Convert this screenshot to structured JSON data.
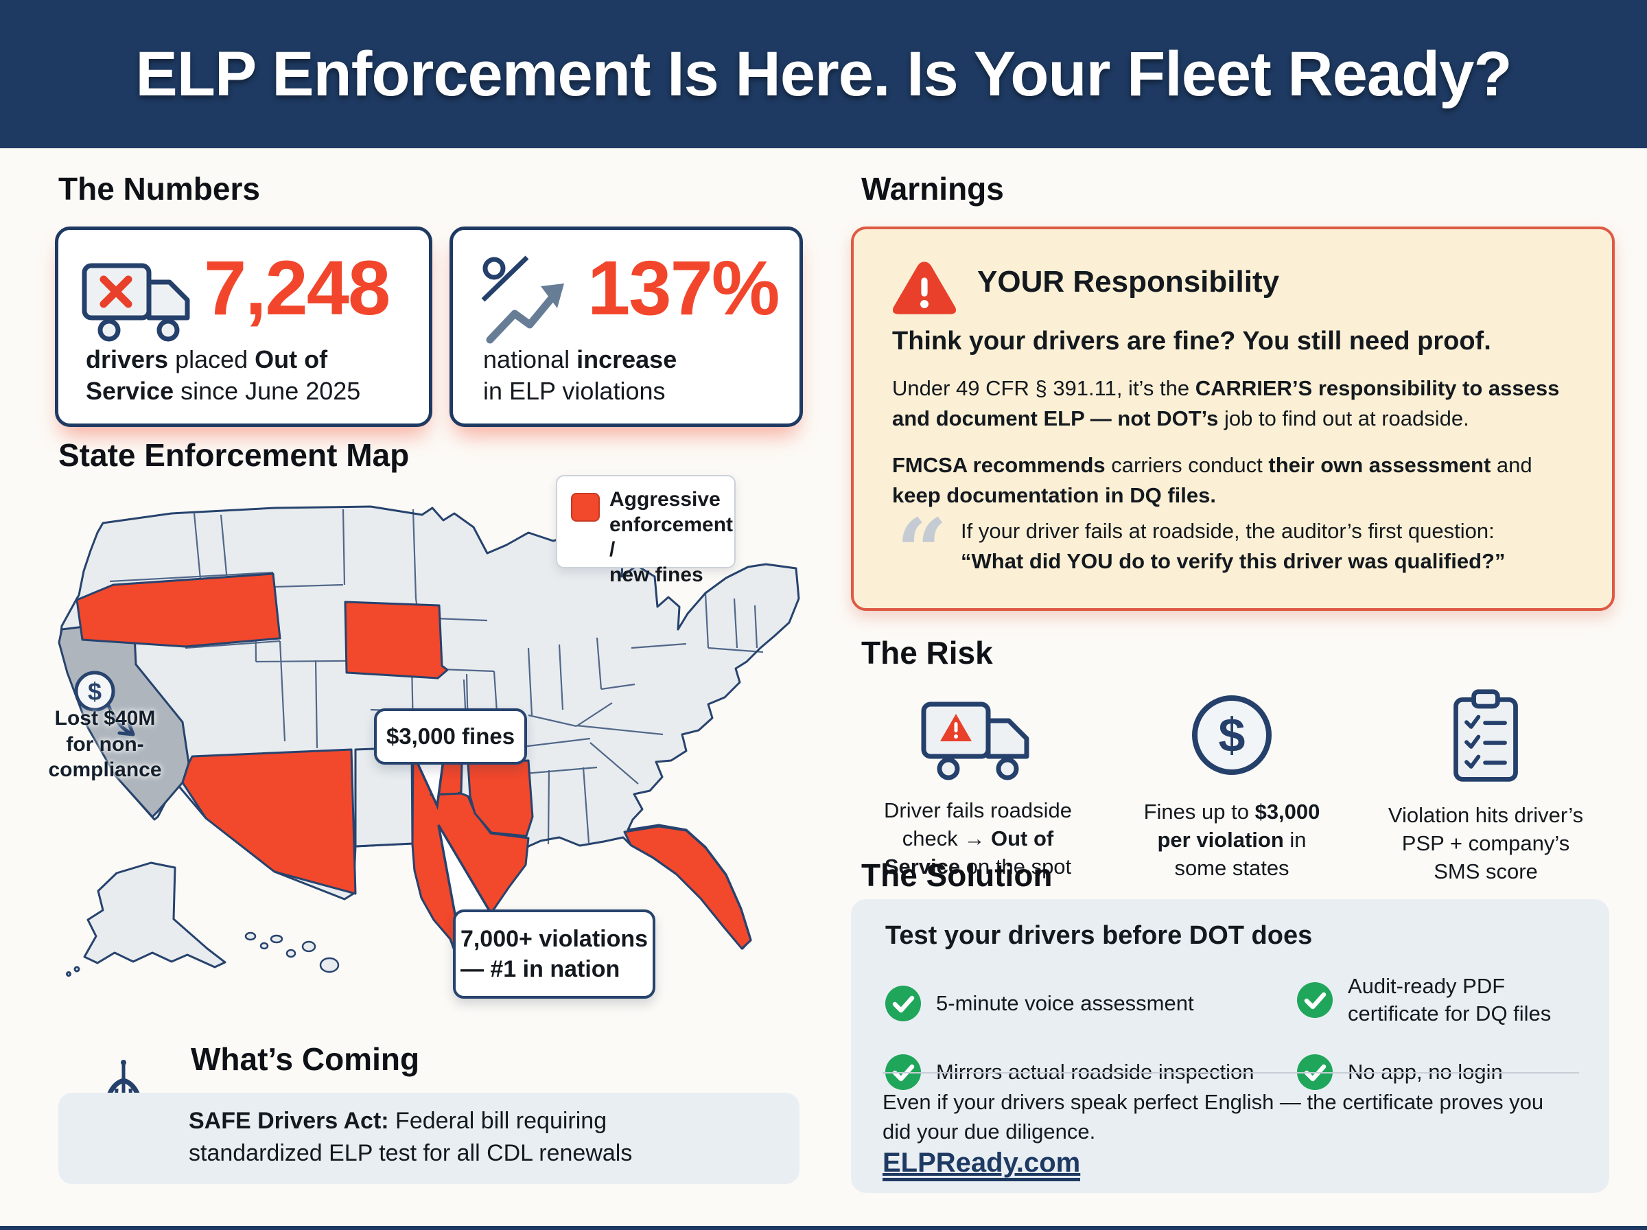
{
  "colors": {
    "navy": "#1e3a62",
    "red": "#f2482c",
    "cream": "#fbf0d5",
    "panel": "#e9eef3",
    "green": "#1fa65a",
    "state_gray": "#e8ecef",
    "california_gray": "#aeb5bd"
  },
  "header": {
    "title": "ELP Enforcement Is Here. Is Your Fleet Ready?"
  },
  "numbers": {
    "heading": "The Numbers",
    "stats": [
      {
        "icon": "truck-x-icon",
        "value": "7,248",
        "caption": [
          {
            "t": "drivers",
            "b": true
          },
          {
            "t": " placed ",
            "b": false
          },
          {
            "t": "Out of\nService",
            "b": true
          },
          {
            "t": " since June 2025",
            "b": false
          }
        ]
      },
      {
        "icon": "percent-arrow-icon",
        "value": "137%",
        "caption": [
          {
            "t": "national ",
            "b": false
          },
          {
            "t": "increase",
            "b": true
          },
          {
            "t": "\nin ELP violations",
            "b": false
          }
        ]
      }
    ]
  },
  "map": {
    "heading": "State Enforcement Map",
    "legend_label": "Aggressive\nenforcement /\nnew fines",
    "callout_fines": "$3,000 fines",
    "callout_violations": "7,000+ violations\n— #1 in nation",
    "california_note": "Lost $40M\nfor non-\ncompliance",
    "highlighted_states": [
      "Oregon",
      "South Dakota",
      "Arizona",
      "Oklahoma",
      "Texas",
      "Arkansas",
      "Florida"
    ],
    "special_state": "California"
  },
  "whats_coming": {
    "heading": "What’s Coming",
    "body": [
      {
        "t": "SAFE Drivers Act:",
        "b": true
      },
      {
        "t": " Federal bill requiring\nstandardized ELP test for all CDL renewals",
        "b": false
      }
    ]
  },
  "warnings": {
    "heading": "Warnings",
    "title": "YOUR Responsibility",
    "subtitle": "Think your drivers are fine? You still need proof.",
    "p1": [
      {
        "t": "Under 49 CFR § 391.11, it’s the ",
        "b": false
      },
      {
        "t": "CARRIER’S responsibility to assess and document ELP — not DOT’s",
        "b": true
      },
      {
        "t": " job to find out at roadside.",
        "b": false
      }
    ],
    "p2": [
      {
        "t": "FMCSA recommends",
        "b": true
      },
      {
        "t": " carriers conduct ",
        "b": false
      },
      {
        "t": "their own assessment",
        "b": true
      },
      {
        "t": " and ",
        "b": false
      },
      {
        "t": "keep documentation in DQ files.",
        "b": true
      }
    ],
    "quote": [
      {
        "t": "If your driver fails at roadside, the auditor’s first question:\n",
        "b": false
      },
      {
        "t": "“What did YOU do to verify this driver was qualified?”",
        "b": true
      }
    ]
  },
  "risk": {
    "heading": "The Risk",
    "items": [
      {
        "icon": "truck-warning-icon",
        "caption": [
          {
            "t": "Driver fails roadside\ncheck → ",
            "b": false
          },
          {
            "t": "Out of\nService",
            "b": true
          },
          {
            "t": " on the spot",
            "b": false
          }
        ]
      },
      {
        "icon": "dollar-circle-icon",
        "caption": [
          {
            "t": "Fines up to ",
            "b": false
          },
          {
            "t": "$3,000\nper violation",
            "b": true
          },
          {
            "t": " in\nsome states",
            "b": false
          }
        ]
      },
      {
        "icon": "clipboard-check-icon",
        "caption": [
          {
            "t": "Violation hits driver’s\nPSP + company’s\nSMS score",
            "b": false
          }
        ]
      }
    ]
  },
  "solution": {
    "heading": "The Solution",
    "title": "Test your drivers before DOT does",
    "items": [
      "5-minute voice assessment",
      "Audit-ready PDF\ncertificate for DQ files",
      "Mirrors actual roadside inspection",
      "No app, no login"
    ],
    "note": "Even if your drivers speak perfect English — the certificate proves you did your due diligence.",
    "link": "ELPReady.com"
  }
}
